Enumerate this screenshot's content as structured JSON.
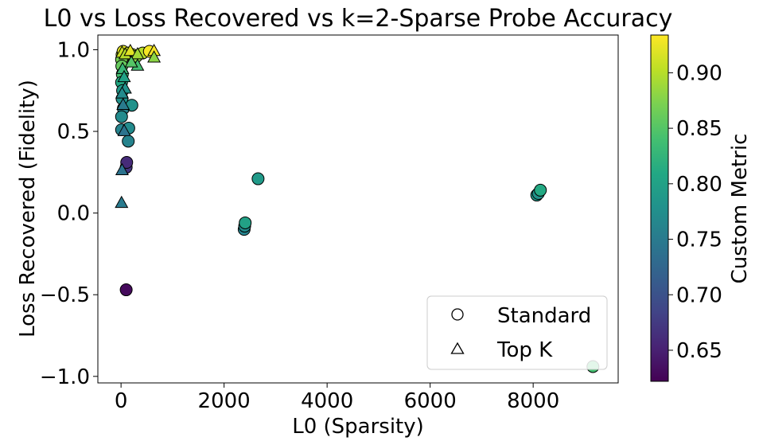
{
  "chart_data": {
    "type": "scatter",
    "title": "L0 vs Loss Recovered vs k=2-Sparse Probe Accuracy",
    "xlabel": "L0 (Sparsity)",
    "ylabel": "Loss Recovered (Fidelity)",
    "xlim": [
      -450,
      9650
    ],
    "ylim": [
      -1.04,
      1.09
    ],
    "xticks": [
      0,
      2000,
      4000,
      6000,
      8000
    ],
    "xtick_labels": [
      "0",
      "2000",
      "4000",
      "6000",
      "8000"
    ],
    "yticks": [
      -1.0,
      -0.5,
      0.0,
      0.5,
      1.0
    ],
    "ytick_labels": [
      "−1.0",
      "−0.5",
      "0.0",
      "0.5",
      "1.0"
    ],
    "grid": false,
    "legend": {
      "placement": "lower-right",
      "entries": [
        {
          "label": "Standard",
          "marker": "circle"
        },
        {
          "label": "Top K",
          "marker": "triangle"
        }
      ]
    },
    "colorbar": {
      "label": "Custom Metric",
      "colormap": "viridis",
      "range": [
        0.622,
        0.934
      ],
      "ticks": [
        0.65,
        0.7,
        0.75,
        0.8,
        0.85,
        0.9
      ],
      "tick_labels": [
        "0.65",
        "0.70",
        "0.75",
        "0.80",
        "0.85",
        "0.90"
      ]
    },
    "series": [
      {
        "name": "Standard",
        "marker": "circle",
        "points": [
          {
            "x": 20,
            "y": 0.97,
            "c": 0.9
          },
          {
            "x": 40,
            "y": 0.99,
            "c": 0.92
          },
          {
            "x": 60,
            "y": 0.96,
            "c": 0.89
          },
          {
            "x": 150,
            "y": 0.98,
            "c": 0.91
          },
          {
            "x": 220,
            "y": 0.97,
            "c": 0.9
          },
          {
            "x": 300,
            "y": 0.96,
            "c": 0.88
          },
          {
            "x": 420,
            "y": 0.98,
            "c": 0.9
          },
          {
            "x": 550,
            "y": 0.99,
            "c": 0.93
          },
          {
            "x": 10,
            "y": 0.94,
            "c": 0.87
          },
          {
            "x": 15,
            "y": 0.9,
            "c": 0.86
          },
          {
            "x": 25,
            "y": 0.85,
            "c": 0.84
          },
          {
            "x": 10,
            "y": 0.8,
            "c": 0.81
          },
          {
            "x": 30,
            "y": 0.75,
            "c": 0.79
          },
          {
            "x": 20,
            "y": 0.7,
            "c": 0.78
          },
          {
            "x": 45,
            "y": 0.64,
            "c": 0.76
          },
          {
            "x": 10,
            "y": 0.59,
            "c": 0.77
          },
          {
            "x": 210,
            "y": 0.66,
            "c": 0.78
          },
          {
            "x": 10,
            "y": 0.51,
            "c": 0.76
          },
          {
            "x": 150,
            "y": 0.52,
            "c": 0.77
          },
          {
            "x": 140,
            "y": 0.44,
            "c": 0.76
          },
          {
            "x": 100,
            "y": 0.28,
            "c": 0.67
          },
          {
            "x": 110,
            "y": 0.31,
            "c": 0.66
          },
          {
            "x": 100,
            "y": -0.47,
            "c": 0.63
          },
          {
            "x": 2660,
            "y": 0.21,
            "c": 0.79
          },
          {
            "x": 2390,
            "y": -0.1,
            "c": 0.76
          },
          {
            "x": 2400,
            "y": -0.08,
            "c": 0.77
          },
          {
            "x": 2410,
            "y": -0.06,
            "c": 0.8
          },
          {
            "x": 8070,
            "y": 0.11,
            "c": 0.79
          },
          {
            "x": 8100,
            "y": 0.12,
            "c": 0.78
          },
          {
            "x": 8140,
            "y": 0.14,
            "c": 0.81
          },
          {
            "x": 9160,
            "y": -0.94,
            "c": 0.84
          }
        ]
      },
      {
        "name": "Top K",
        "marker": "triangle",
        "points": [
          {
            "x": 20,
            "y": 0.98,
            "c": 0.91
          },
          {
            "x": 80,
            "y": 0.97,
            "c": 0.9
          },
          {
            "x": 180,
            "y": 0.99,
            "c": 0.92
          },
          {
            "x": 320,
            "y": 0.97,
            "c": 0.89
          },
          {
            "x": 640,
            "y": 0.99,
            "c": 0.93
          },
          {
            "x": 640,
            "y": 0.95,
            "c": 0.88
          },
          {
            "x": 320,
            "y": 0.9,
            "c": 0.84
          },
          {
            "x": 200,
            "y": 0.92,
            "c": 0.85
          },
          {
            "x": 30,
            "y": 0.88,
            "c": 0.83
          },
          {
            "x": 60,
            "y": 0.83,
            "c": 0.8
          },
          {
            "x": 80,
            "y": 0.76,
            "c": 0.78
          },
          {
            "x": 20,
            "y": 0.73,
            "c": 0.77
          },
          {
            "x": 40,
            "y": 0.66,
            "c": 0.75
          },
          {
            "x": 60,
            "y": 0.5,
            "c": 0.74
          },
          {
            "x": 20,
            "y": 0.26,
            "c": 0.74
          },
          {
            "x": 10,
            "y": 0.06,
            "c": 0.75
          }
        ]
      }
    ]
  }
}
